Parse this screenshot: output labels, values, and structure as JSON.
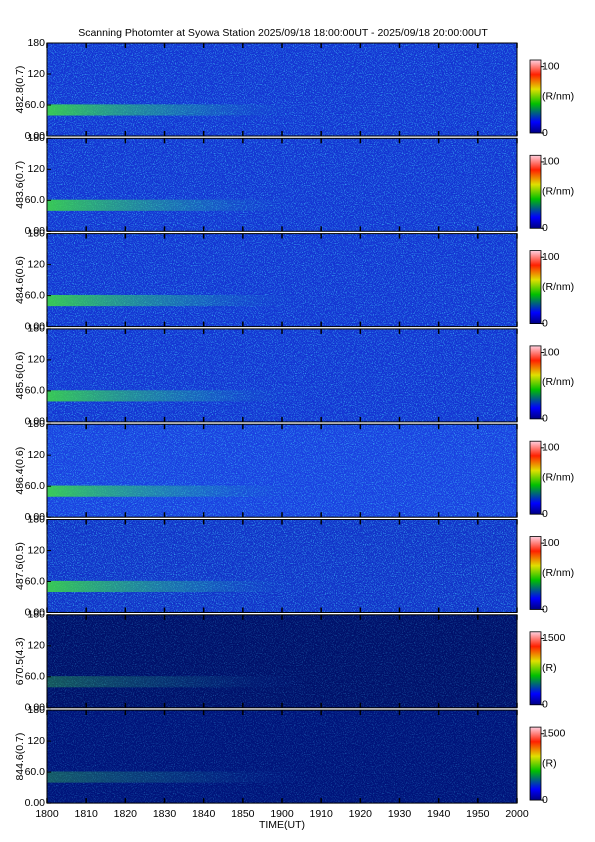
{
  "figure": {
    "title": "Scanning Photomter at Syowa Station 2025/09/18 18:00:00UT - 2025/09/18 20:00:00UT",
    "xlabel": "TIME(UT)",
    "xlim": [
      0,
      120
    ],
    "xticks": [
      {
        "value": 0,
        "label": "1800"
      },
      {
        "value": 10,
        "label": "1810"
      },
      {
        "value": 20,
        "label": "1820"
      },
      {
        "value": 30,
        "label": "1830"
      },
      {
        "value": 40,
        "label": "1840"
      },
      {
        "value": 50,
        "label": "1850"
      },
      {
        "value": 60,
        "label": "1900"
      },
      {
        "value": 70,
        "label": "1910"
      },
      {
        "value": 80,
        "label": "1920"
      },
      {
        "value": 90,
        "label": "1930"
      },
      {
        "value": 100,
        "label": "1940"
      },
      {
        "value": 110,
        "label": "1950"
      },
      {
        "value": 120,
        "label": "2000"
      }
    ]
  },
  "chart_data": [
    {
      "type": "heatmap",
      "ylabel": "482.8(0.7)",
      "color": "#1434d2",
      "ylim": [
        0,
        180
      ],
      "yticks": [
        {
          "value": 0,
          "label": "0.00"
        },
        {
          "value": 60,
          "label": "60.0"
        },
        120,
        180
      ],
      "clim": [
        0,
        110
      ],
      "cticks": [
        0,
        100
      ],
      "clabel": "(R/nm)"
    },
    {
      "type": "heatmap",
      "ylabel": "483.6(0.7)",
      "color": "#1434d2",
      "ylim": [
        0,
        180
      ],
      "yticks": [
        {
          "value": 0,
          "label": "0.00"
        },
        {
          "value": 60,
          "label": "60.0"
        },
        120,
        180
      ],
      "clim": [
        0,
        110
      ],
      "cticks": [
        0,
        100
      ],
      "clabel": "(R/nm)"
    },
    {
      "type": "heatmap",
      "ylabel": "484.6(0.6)",
      "color": "#1434d2",
      "ylim": [
        0,
        180
      ],
      "yticks": [
        {
          "value": 0,
          "label": "0.00"
        },
        {
          "value": 60,
          "label": "60.0"
        },
        120,
        180
      ],
      "clim": [
        0,
        110
      ],
      "cticks": [
        0,
        100
      ],
      "clabel": "(R/nm)"
    },
    {
      "type": "heatmap",
      "ylabel": "485.6(0.6)",
      "color": "#1434d2",
      "ylim": [
        0,
        180
      ],
      "yticks": [
        {
          "value": 0,
          "label": "0.00"
        },
        {
          "value": 60,
          "label": "60.0"
        },
        120,
        180
      ],
      "clim": [
        0,
        110
      ],
      "cticks": [
        0,
        100
      ],
      "clabel": "(R/nm)"
    },
    {
      "type": "heatmap",
      "ylabel": "486.4(0.6)",
      "color": "#1a40e0",
      "ylim": [
        0,
        180
      ],
      "yticks": [
        {
          "value": 0,
          "label": "0.00"
        },
        {
          "value": 60,
          "label": "60.0"
        },
        120,
        180
      ],
      "clim": [
        0,
        110
      ],
      "cticks": [
        0,
        100
      ],
      "clabel": "(R/nm)"
    },
    {
      "type": "heatmap",
      "ylabel": "487.6(0.5)",
      "color": "#1232c8",
      "ylim": [
        0,
        180
      ],
      "yticks": [
        {
          "value": 0,
          "label": "0.00"
        },
        {
          "value": 60,
          "label": "60.0"
        },
        120,
        180
      ],
      "clim": [
        0,
        110
      ],
      "cticks": [
        0,
        100
      ],
      "clabel": "(R/nm)"
    },
    {
      "type": "heatmap",
      "ylabel": "670.5(4.3)",
      "color": "#00106a",
      "ylim": [
        0,
        180
      ],
      "yticks": [
        {
          "value": 0,
          "label": "0.00"
        },
        {
          "value": 60,
          "label": "60.0"
        },
        120,
        180
      ],
      "clim": [
        0,
        1650
      ],
      "cticks": [
        0,
        1500
      ],
      "clabel": "(R)"
    },
    {
      "type": "heatmap",
      "ylabel": "844.6(0.7)",
      "color": "#00137a",
      "ylim": [
        0,
        180
      ],
      "yticks": [
        {
          "value": 0,
          "label": "0.00"
        },
        {
          "value": 60,
          "label": "60.0"
        },
        120,
        180
      ],
      "clim": [
        0,
        1650
      ],
      "cticks": [
        0,
        1500
      ],
      "clabel": "(R)"
    }
  ]
}
